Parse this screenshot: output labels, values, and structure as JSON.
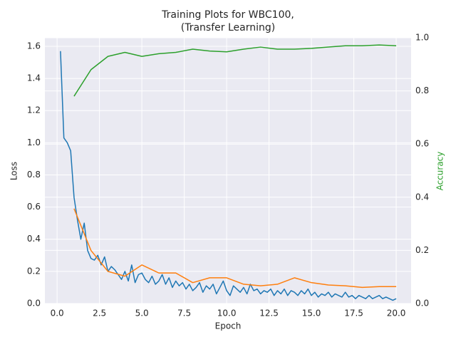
{
  "chart_data": {
    "type": "line",
    "title": [
      "Training Plots for WBC100,",
      "(Transfer Learning)"
    ],
    "xlabel": "Epoch",
    "ylabel": "Loss",
    "y2label": "Accuracy",
    "y2label_color": "#2ca02c",
    "background": "#eaeaf2",
    "grid": true,
    "xlim": [
      -0.72,
      20.88
    ],
    "xticks": [
      {
        "value": 0,
        "label": "0.0"
      },
      2.5,
      {
        "value": 5,
        "label": "5.0"
      },
      7.5,
      {
        "value": 10,
        "label": "10.0"
      },
      12.5,
      {
        "value": 15,
        "label": "15.0"
      },
      17.5,
      {
        "value": 20,
        "label": "20.0"
      }
    ],
    "ylim": [
      0,
      1.653
    ],
    "yticks": [
      {
        "value": 0,
        "label": "0.0"
      },
      0.2,
      0.4,
      0.6,
      0.8,
      {
        "value": 1,
        "label": "1.0"
      },
      1.2,
      1.4,
      1.6
    ],
    "y2lim": [
      0,
      1.0
    ],
    "y2ticks": [
      {
        "value": 0,
        "label": "0.0"
      },
      0.2,
      0.4,
      0.6,
      0.8,
      {
        "value": 1,
        "label": "1.0"
      }
    ],
    "series": [
      {
        "color": "#1f77b4",
        "x": [
          0.2,
          0.4,
          0.6,
          0.8,
          1.0,
          1.2,
          1.4,
          1.6,
          1.8,
          2.0,
          2.2,
          2.4,
          2.6,
          2.8,
          3.0,
          3.2,
          3.4,
          3.6,
          3.8,
          4.0,
          4.2,
          4.4,
          4.6,
          4.8,
          5.0,
          5.2,
          5.4,
          5.6,
          5.8,
          6.0,
          6.2,
          6.4,
          6.6,
          6.8,
          7.0,
          7.2,
          7.4,
          7.6,
          7.8,
          8.0,
          8.2,
          8.4,
          8.6,
          8.8,
          9.0,
          9.2,
          9.4,
          9.6,
          9.8,
          10.0,
          10.2,
          10.4,
          10.6,
          10.8,
          11.0,
          11.2,
          11.4,
          11.6,
          11.8,
          12.0,
          12.2,
          12.4,
          12.6,
          12.8,
          13.0,
          13.2,
          13.4,
          13.6,
          13.8,
          14.0,
          14.2,
          14.4,
          14.6,
          14.8,
          15.0,
          15.2,
          15.4,
          15.6,
          15.8,
          16.0,
          16.2,
          16.4,
          16.6,
          16.8,
          17.0,
          17.2,
          17.4,
          17.6,
          17.8,
          18.0,
          18.2,
          18.4,
          18.6,
          18.8,
          19.0,
          19.2,
          19.4,
          19.6,
          19.8,
          20.0
        ],
        "values": [
          1.57,
          1.03,
          1.0,
          0.95,
          0.66,
          0.52,
          0.4,
          0.5,
          0.33,
          0.28,
          0.27,
          0.3,
          0.24,
          0.29,
          0.2,
          0.23,
          0.21,
          0.18,
          0.15,
          0.2,
          0.14,
          0.24,
          0.13,
          0.18,
          0.19,
          0.15,
          0.13,
          0.17,
          0.12,
          0.14,
          0.18,
          0.12,
          0.16,
          0.1,
          0.14,
          0.11,
          0.13,
          0.09,
          0.12,
          0.08,
          0.1,
          0.13,
          0.07,
          0.11,
          0.09,
          0.12,
          0.06,
          0.1,
          0.14,
          0.08,
          0.05,
          0.11,
          0.09,
          0.07,
          0.1,
          0.06,
          0.12,
          0.08,
          0.09,
          0.06,
          0.08,
          0.07,
          0.09,
          0.05,
          0.08,
          0.06,
          0.09,
          0.05,
          0.08,
          0.07,
          0.05,
          0.08,
          0.06,
          0.09,
          0.05,
          0.07,
          0.04,
          0.06,
          0.05,
          0.07,
          0.04,
          0.06,
          0.05,
          0.04,
          0.07,
          0.04,
          0.05,
          0.03,
          0.05,
          0.04,
          0.03,
          0.05,
          0.03,
          0.04,
          0.05,
          0.03,
          0.04,
          0.03,
          0.02,
          0.03
        ]
      },
      {
        "color": "#ff7f0e",
        "x": [
          1,
          2,
          3,
          4,
          5,
          6,
          7,
          8,
          9,
          10,
          11,
          12,
          13,
          14,
          15,
          16,
          17,
          18,
          19,
          20
        ],
        "values": [
          0.59,
          0.33,
          0.2,
          0.17,
          0.24,
          0.19,
          0.19,
          0.13,
          0.16,
          0.16,
          0.12,
          0.11,
          0.12,
          0.16,
          0.13,
          0.115,
          0.11,
          0.1,
          0.105,
          0.105
        ]
      },
      {
        "color": "#2ca02c",
        "axis": "y2",
        "x": [
          1,
          2,
          3,
          4,
          5,
          6,
          7,
          8,
          9,
          10,
          11,
          12,
          13,
          14,
          15,
          16,
          17,
          18,
          19,
          20
        ],
        "values": [
          0.78,
          0.88,
          0.93,
          0.945,
          0.93,
          0.94,
          0.945,
          0.957,
          0.95,
          0.947,
          0.957,
          0.965,
          0.957,
          0.957,
          0.96,
          0.965,
          0.97,
          0.97,
          0.973,
          0.97
        ]
      }
    ]
  }
}
